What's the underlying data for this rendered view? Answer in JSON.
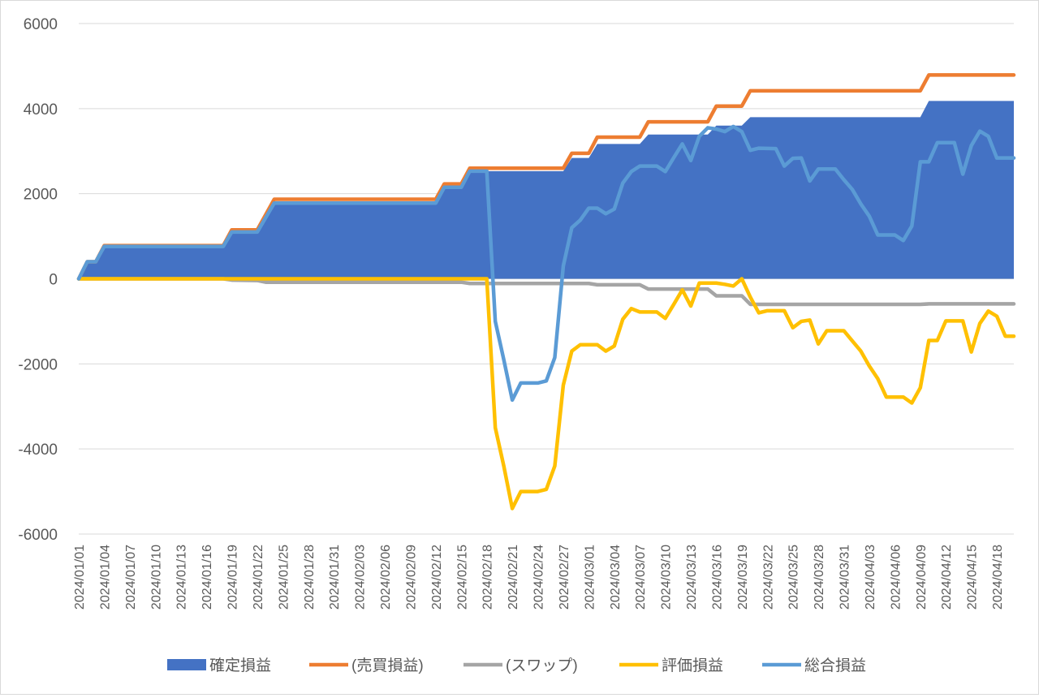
{
  "chart_data": {
    "type": "area",
    "ylim": [
      -6000,
      6000
    ],
    "y_ticks": [
      "6000",
      "4000",
      "2000",
      "0",
      "-2000",
      "-4000",
      "-6000"
    ],
    "x_tick_labels": [
      "2024/01/01",
      "2024/01/04",
      "2024/01/07",
      "2024/01/10",
      "2024/01/13",
      "2024/01/16",
      "2024/01/19",
      "2024/01/22",
      "2024/01/25",
      "2024/01/28",
      "2024/01/31",
      "2024/02/03",
      "2024/02/06",
      "2024/02/09",
      "2024/02/12",
      "2024/02/15",
      "2024/02/18",
      "2024/02/21",
      "2024/02/24",
      "2024/02/27",
      "2024/03/01",
      "2024/03/04",
      "2024/03/07",
      "2024/03/10",
      "2024/03/13",
      "2024/03/16",
      "2024/03/19",
      "2024/03/22",
      "2024/03/25",
      "2024/03/28",
      "2024/03/31",
      "2024/04/03",
      "2024/04/06",
      "2024/04/09",
      "2024/04/12",
      "2024/04/15",
      "2024/04/18"
    ],
    "grid": true,
    "legend_position": "bottom",
    "series": [
      {
        "name": "確定損益",
        "kind": "area",
        "color": "#4472c4",
        "points": [
          [
            0,
            0
          ],
          [
            1,
            400
          ],
          [
            2,
            400
          ],
          [
            3,
            760
          ],
          [
            17,
            760
          ],
          [
            18,
            1100
          ],
          [
            21,
            1100
          ],
          [
            23,
            1780
          ],
          [
            42,
            1780
          ],
          [
            43,
            2150
          ],
          [
            45,
            2150
          ],
          [
            46,
            2530
          ],
          [
            57,
            2530
          ],
          [
            58,
            2840
          ],
          [
            60,
            2840
          ],
          [
            61,
            3170
          ],
          [
            66,
            3170
          ],
          [
            67,
            3390
          ],
          [
            74,
            3390
          ],
          [
            75,
            3600
          ],
          [
            78,
            3600
          ],
          [
            79,
            3800
          ],
          [
            99,
            3800
          ],
          [
            100,
            4180
          ],
          [
            110,
            4180
          ]
        ]
      },
      {
        "name": "(売買損益)",
        "kind": "line",
        "color": "#ed7d31",
        "points": [
          [
            0,
            0
          ],
          [
            1,
            400
          ],
          [
            2,
            400
          ],
          [
            3,
            780
          ],
          [
            17,
            780
          ],
          [
            18,
            1150
          ],
          [
            21,
            1150
          ],
          [
            23,
            1870
          ],
          [
            42,
            1870
          ],
          [
            43,
            2230
          ],
          [
            45,
            2230
          ],
          [
            46,
            2600
          ],
          [
            57,
            2600
          ],
          [
            58,
            2950
          ],
          [
            60,
            2950
          ],
          [
            61,
            3330
          ],
          [
            66,
            3330
          ],
          [
            67,
            3690
          ],
          [
            74,
            3690
          ],
          [
            75,
            4060
          ],
          [
            78,
            4060
          ],
          [
            79,
            4420
          ],
          [
            99,
            4420
          ],
          [
            100,
            4790
          ],
          [
            110,
            4790
          ]
        ]
      },
      {
        "name": "(スワップ)",
        "kind": "line",
        "color": "#a5a5a5",
        "points": [
          [
            0,
            0
          ],
          [
            17,
            0
          ],
          [
            18,
            -30
          ],
          [
            21,
            -40
          ],
          [
            22,
            -80
          ],
          [
            45,
            -80
          ],
          [
            46,
            -110
          ],
          [
            60,
            -110
          ],
          [
            61,
            -140
          ],
          [
            66,
            -140
          ],
          [
            67,
            -240
          ],
          [
            74,
            -240
          ],
          [
            75,
            -400
          ],
          [
            78,
            -400
          ],
          [
            79,
            -600
          ],
          [
            99,
            -600
          ],
          [
            100,
            -590
          ],
          [
            110,
            -590
          ]
        ]
      },
      {
        "name": "評価損益",
        "kind": "line",
        "color": "#ffc000",
        "points": [
          [
            0,
            0
          ],
          [
            48,
            0
          ],
          [
            49,
            -3500
          ],
          [
            50,
            -4400
          ],
          [
            51,
            -5400
          ],
          [
            52,
            -5000
          ],
          [
            54,
            -5000
          ],
          [
            55,
            -4950
          ],
          [
            56,
            -4400
          ],
          [
            57,
            -2500
          ],
          [
            58,
            -1700
          ],
          [
            59,
            -1550
          ],
          [
            61,
            -1550
          ],
          [
            62,
            -1700
          ],
          [
            63,
            -1580
          ],
          [
            64,
            -950
          ],
          [
            65,
            -700
          ],
          [
            66,
            -780
          ],
          [
            68,
            -780
          ],
          [
            69,
            -930
          ],
          [
            70,
            -600
          ],
          [
            71,
            -260
          ],
          [
            72,
            -640
          ],
          [
            73,
            -100
          ],
          [
            75,
            -100
          ],
          [
            76,
            -130
          ],
          [
            77,
            -170
          ],
          [
            78,
            0
          ],
          [
            79,
            -430
          ],
          [
            80,
            -800
          ],
          [
            81,
            -750
          ],
          [
            83,
            -750
          ],
          [
            84,
            -1150
          ],
          [
            85,
            -1000
          ],
          [
            86,
            -970
          ],
          [
            87,
            -1530
          ],
          [
            88,
            -1220
          ],
          [
            90,
            -1220
          ],
          [
            91,
            -1460
          ],
          [
            92,
            -1700
          ],
          [
            93,
            -2050
          ],
          [
            94,
            -2350
          ],
          [
            95,
            -2780
          ],
          [
            97,
            -2780
          ],
          [
            98,
            -2920
          ],
          [
            99,
            -2560
          ],
          [
            100,
            -1450
          ],
          [
            101,
            -1450
          ],
          [
            102,
            -990
          ],
          [
            104,
            -990
          ],
          [
            105,
            -1720
          ],
          [
            106,
            -1050
          ],
          [
            107,
            -760
          ],
          [
            108,
            -880
          ],
          [
            109,
            -1350
          ],
          [
            110,
            -1350
          ]
        ]
      },
      {
        "name": "総合損益",
        "kind": "line",
        "color": "#5b9bd5",
        "points": [
          [
            0,
            0
          ],
          [
            1,
            400
          ],
          [
            2,
            400
          ],
          [
            3,
            760
          ],
          [
            17,
            760
          ],
          [
            18,
            1100
          ],
          [
            21,
            1100
          ],
          [
            23,
            1780
          ],
          [
            42,
            1780
          ],
          [
            43,
            2150
          ],
          [
            45,
            2150
          ],
          [
            46,
            2530
          ],
          [
            48,
            2530
          ],
          [
            49,
            -1000
          ],
          [
            50,
            -1900
          ],
          [
            51,
            -2850
          ],
          [
            52,
            -2450
          ],
          [
            54,
            -2450
          ],
          [
            55,
            -2400
          ],
          [
            56,
            -1850
          ],
          [
            57,
            300
          ],
          [
            58,
            1200
          ],
          [
            59,
            1380
          ],
          [
            60,
            1660
          ],
          [
            61,
            1660
          ],
          [
            62,
            1530
          ],
          [
            63,
            1640
          ],
          [
            64,
            2250
          ],
          [
            65,
            2520
          ],
          [
            66,
            2650
          ],
          [
            68,
            2650
          ],
          [
            69,
            2520
          ],
          [
            70,
            2850
          ],
          [
            71,
            3170
          ],
          [
            72,
            2780
          ],
          [
            73,
            3350
          ],
          [
            74,
            3550
          ],
          [
            75,
            3520
          ],
          [
            76,
            3460
          ],
          [
            77,
            3580
          ],
          [
            78,
            3460
          ],
          [
            79,
            3020
          ],
          [
            80,
            3070
          ],
          [
            82,
            3060
          ],
          [
            83,
            2650
          ],
          [
            84,
            2830
          ],
          [
            85,
            2840
          ],
          [
            86,
            2300
          ],
          [
            87,
            2580
          ],
          [
            89,
            2580
          ],
          [
            90,
            2330
          ],
          [
            91,
            2100
          ],
          [
            92,
            1760
          ],
          [
            93,
            1470
          ],
          [
            94,
            1030
          ],
          [
            96,
            1030
          ],
          [
            97,
            900
          ],
          [
            98,
            1240
          ],
          [
            99,
            2750
          ],
          [
            100,
            2750
          ],
          [
            101,
            3200
          ],
          [
            103,
            3200
          ],
          [
            104,
            2460
          ],
          [
            105,
            3130
          ],
          [
            106,
            3470
          ],
          [
            107,
            3350
          ],
          [
            108,
            2840
          ],
          [
            110,
            2840
          ]
        ]
      }
    ]
  }
}
